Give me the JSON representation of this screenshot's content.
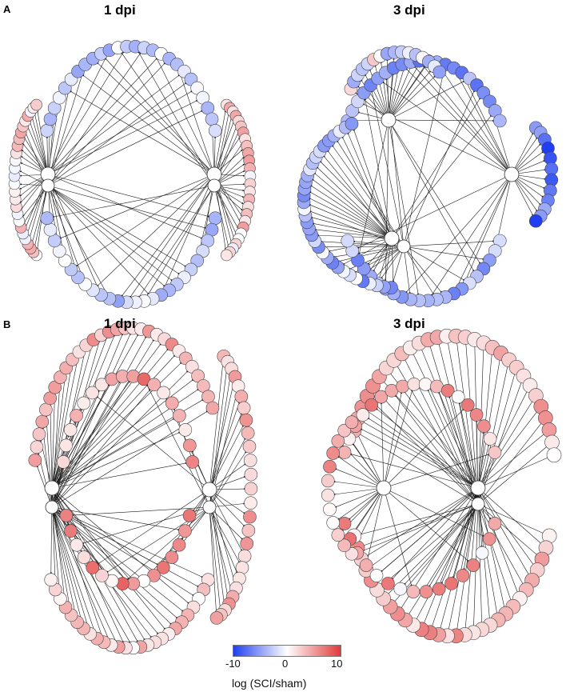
{
  "panels": [
    {
      "letter": "A",
      "left_title": "1 dpi",
      "right_title": "3 dpi"
    },
    {
      "letter": "B",
      "left_title": "1 dpi",
      "right_title": "3 dpi"
    }
  ],
  "legend": {
    "label": "log (SCI/sham)",
    "ticks": [
      "-10",
      "0",
      "10"
    ],
    "low_color": "#1f3ff0",
    "mid_color": "#ffffff",
    "high_color": "#e23a3a"
  }
}
